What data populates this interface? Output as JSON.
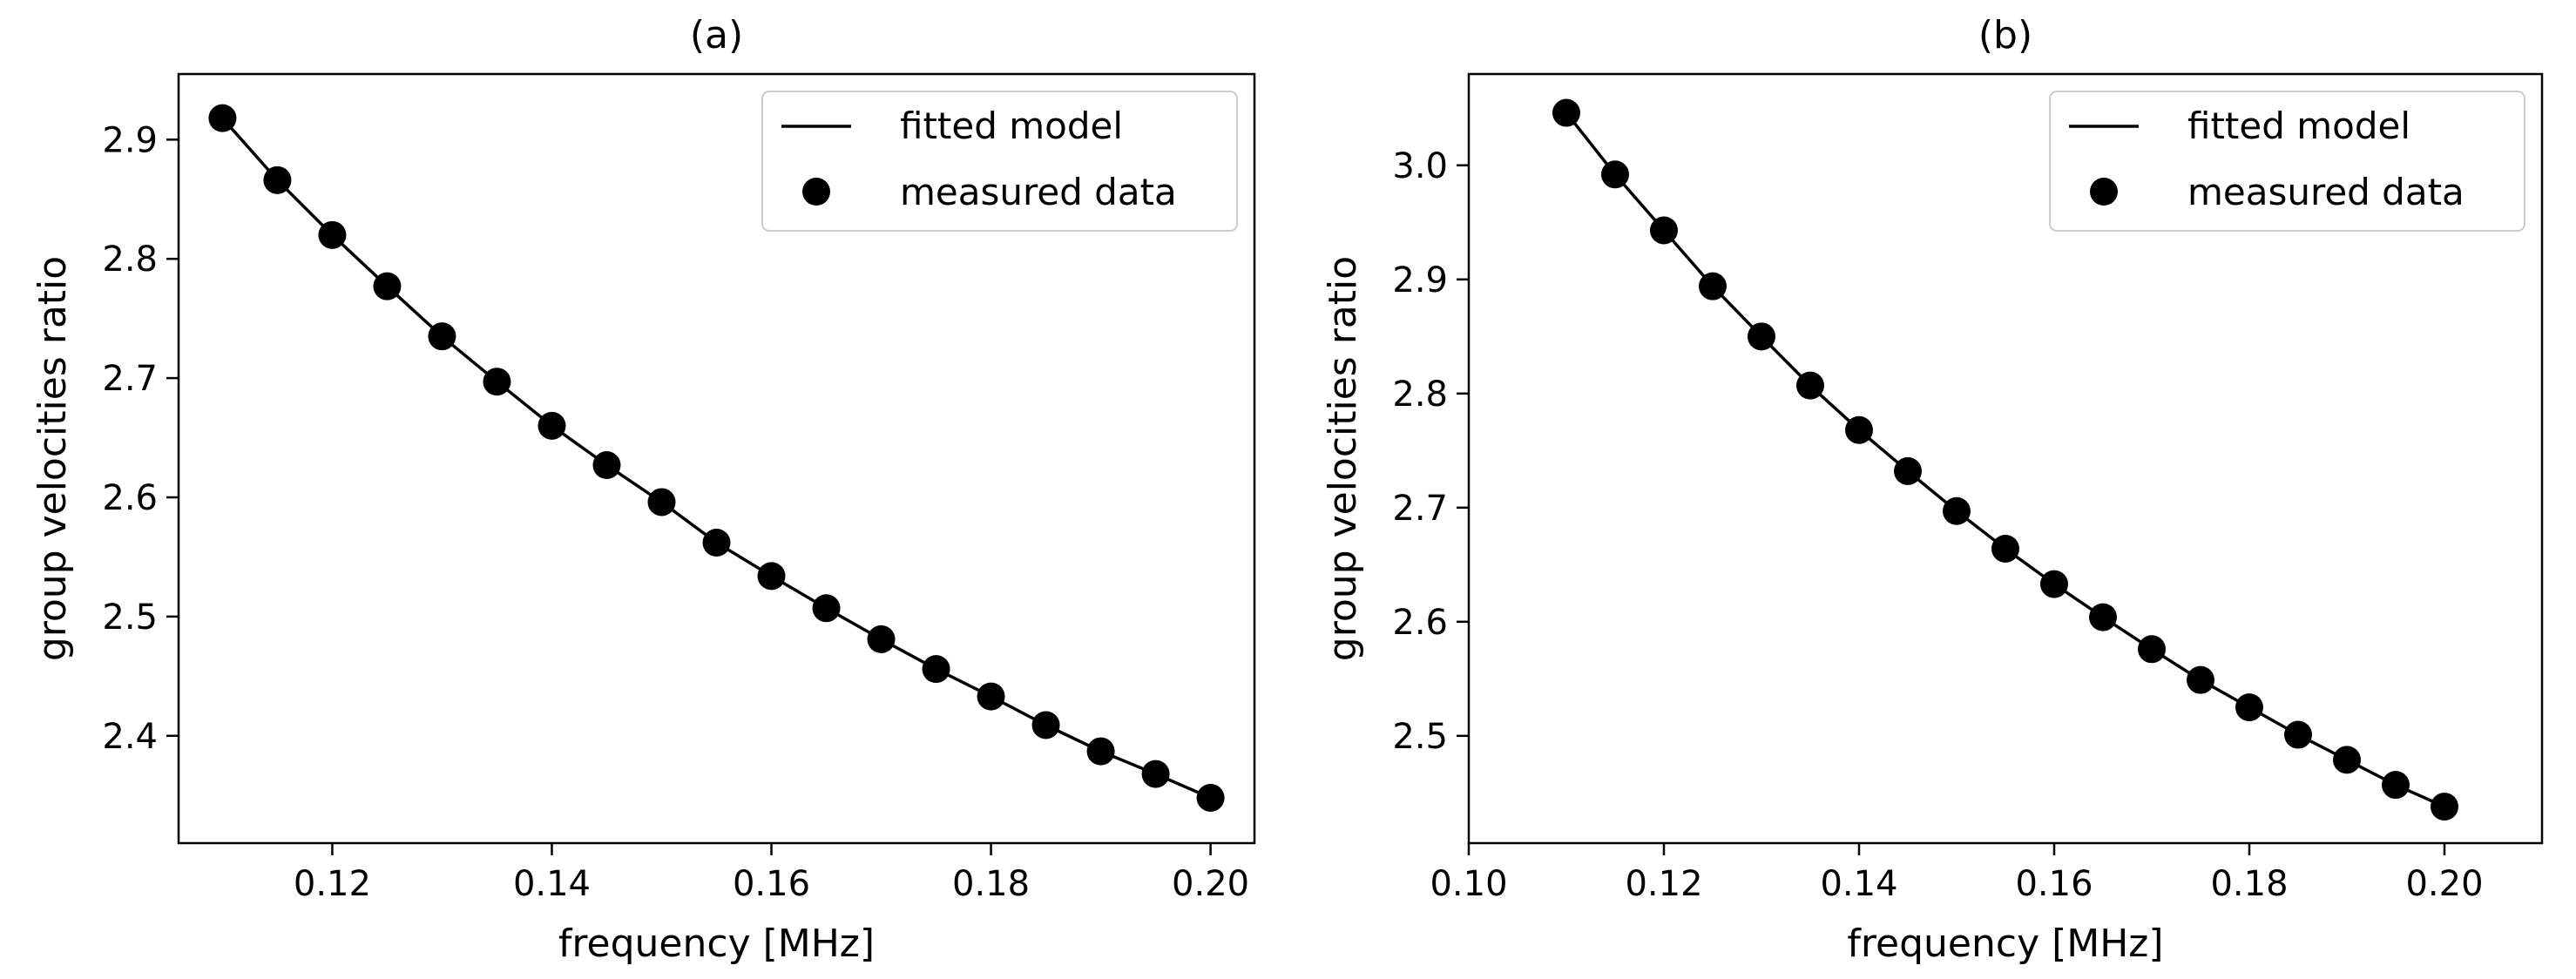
{
  "chart_data": [
    {
      "type": "line",
      "title": "(a)",
      "xlabel": "frequency [MHz]",
      "ylabel": "group velocities ratio",
      "xlim": [
        0.106,
        0.204
      ],
      "ylim": [
        2.31,
        2.955
      ],
      "xticks": [
        "0.12",
        "0.14",
        "0.16",
        "0.18",
        "0.20"
      ],
      "yticks": [
        "2.4",
        "2.5",
        "2.6",
        "2.7",
        "2.8",
        "2.9"
      ],
      "grid": false,
      "legend": {
        "placement": "top-right",
        "entries": [
          "fitted model",
          "measured data"
        ]
      },
      "x": [
        0.11,
        0.115,
        0.12,
        0.125,
        0.13,
        0.135,
        0.14,
        0.145,
        0.15,
        0.155,
        0.16,
        0.165,
        0.17,
        0.175,
        0.18,
        0.185,
        0.19,
        0.195,
        0.2
      ],
      "series": [
        {
          "name": "fitted model",
          "style": "line",
          "values": [
            2.918,
            2.866,
            2.82,
            2.777,
            2.735,
            2.697,
            2.66,
            2.627,
            2.596,
            2.562,
            2.534,
            2.507,
            2.481,
            2.456,
            2.433,
            2.409,
            2.387,
            2.368,
            2.348
          ]
        },
        {
          "name": "measured data",
          "style": "markers",
          "values": [
            2.918,
            2.866,
            2.82,
            2.777,
            2.735,
            2.697,
            2.66,
            2.627,
            2.596,
            2.562,
            2.534,
            2.507,
            2.481,
            2.456,
            2.433,
            2.409,
            2.387,
            2.368,
            2.348
          ]
        }
      ]
    },
    {
      "type": "line",
      "title": "(b)",
      "xlabel": "frequency [MHz]",
      "ylabel": "group velocities ratio",
      "xlim": [
        0.1,
        0.21
      ],
      "ylim": [
        2.406,
        3.08
      ],
      "xticks": [
        "0.10",
        "0.12",
        "0.14",
        "0.16",
        "0.18",
        "0.20"
      ],
      "yticks": [
        "2.5",
        "2.6",
        "2.7",
        "2.8",
        "2.9",
        "3.0"
      ],
      "grid": false,
      "legend": {
        "placement": "top-right",
        "entries": [
          "fitted model",
          "measured data"
        ]
      },
      "x": [
        0.11,
        0.115,
        0.12,
        0.125,
        0.13,
        0.135,
        0.14,
        0.145,
        0.15,
        0.155,
        0.16,
        0.165,
        0.17,
        0.175,
        0.18,
        0.185,
        0.19,
        0.195,
        0.2
      ],
      "series": [
        {
          "name": "fitted model",
          "style": "line",
          "values": [
            3.046,
            2.992,
            2.943,
            2.894,
            2.85,
            2.807,
            2.768,
            2.732,
            2.697,
            2.664,
            2.633,
            2.604,
            2.576,
            2.549,
            2.525,
            2.501,
            2.479,
            2.457,
            2.438
          ]
        },
        {
          "name": "measured data",
          "style": "markers",
          "values": [
            3.046,
            2.992,
            2.943,
            2.894,
            2.85,
            2.807,
            2.768,
            2.732,
            2.697,
            2.664,
            2.633,
            2.604,
            2.576,
            2.549,
            2.525,
            2.501,
            2.479,
            2.457,
            2.438
          ]
        }
      ]
    }
  ]
}
